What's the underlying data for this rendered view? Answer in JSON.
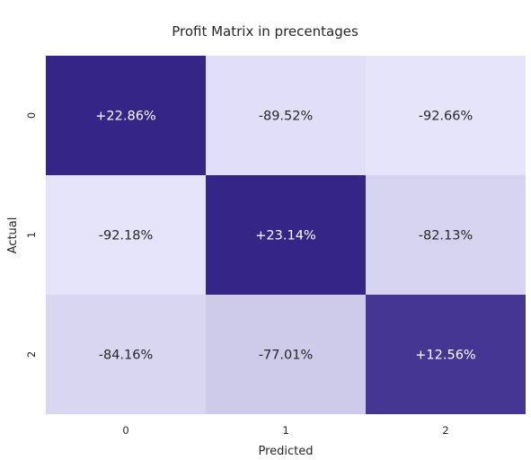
{
  "chart_data": {
    "type": "heatmap",
    "title": "Profit Matrix in precentages",
    "xlabel": "Predicted",
    "ylabel": "Actual",
    "x_categories": [
      "0",
      "1",
      "2"
    ],
    "y_categories": [
      "0",
      "1",
      "2"
    ],
    "values": [
      [
        22.86,
        -89.52,
        -92.66
      ],
      [
        -92.18,
        23.14,
        -82.13
      ],
      [
        -84.16,
        -77.01,
        12.56
      ]
    ],
    "labels": [
      [
        "+22.86%",
        "-89.52%",
        "-92.66%"
      ],
      [
        "-92.18%",
        "+23.14%",
        "-82.13%"
      ],
      [
        "-84.16%",
        "-77.01%",
        "+12.56%"
      ]
    ],
    "colorbar": false,
    "colors": {
      "low": "#e6e4fa",
      "high": "#342587",
      "text_dark": "#262626",
      "text_light": "#ffffff"
    }
  }
}
